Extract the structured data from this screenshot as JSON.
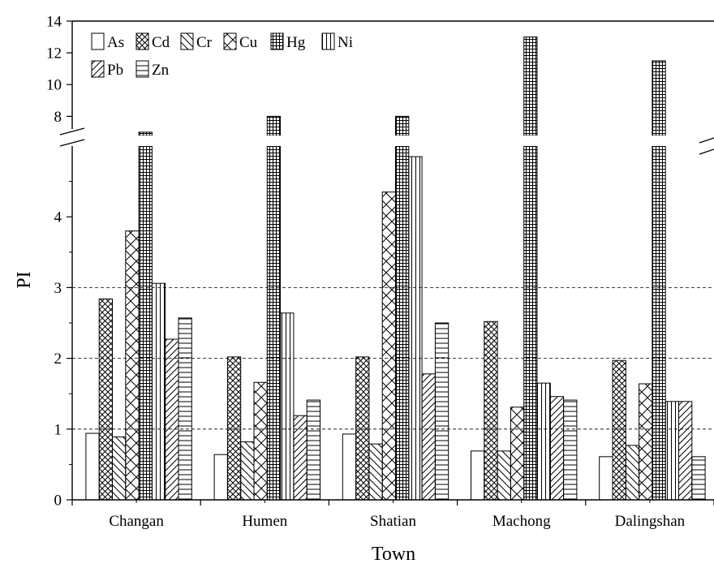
{
  "chart_data": {
    "type": "bar",
    "xlabel": "Town",
    "ylabel": "PI",
    "categories": [
      "Changan",
      "Humen",
      "Shatian",
      "Machong",
      "Dalingshan"
    ],
    "series": [
      {
        "name": "As",
        "values": [
          0.94,
          0.64,
          0.93,
          0.69,
          0.61
        ],
        "pattern": "blank"
      },
      {
        "name": "Cd",
        "values": [
          2.84,
          2.02,
          2.02,
          2.52,
          1.97
        ],
        "pattern": "crosshatch-dense"
      },
      {
        "name": "Cr",
        "values": [
          0.89,
          0.82,
          0.79,
          0.69,
          0.77
        ],
        "pattern": "backslash"
      },
      {
        "name": "Cu",
        "values": [
          3.8,
          1.66,
          4.35,
          1.31,
          1.64
        ],
        "pattern": "crosshatch-sparse"
      },
      {
        "name": "Hg",
        "values": [
          7.0,
          8.0,
          8.0,
          13.0,
          11.5
        ],
        "pattern": "grid"
      },
      {
        "name": "Ni",
        "values": [
          3.06,
          2.64,
          4.85,
          1.65,
          1.39
        ],
        "pattern": "vertical"
      },
      {
        "name": "Pb",
        "values": [
          2.27,
          1.19,
          1.78,
          1.46,
          1.39
        ],
        "pattern": "slash"
      },
      {
        "name": "Zn",
        "values": [
          2.57,
          1.41,
          2.5,
          1.41,
          0.61
        ],
        "pattern": "horizontal"
      }
    ],
    "y_axis": {
      "broken": true,
      "lower_range": [
        0,
        5
      ],
      "upper_range": [
        7.2,
        14
      ],
      "lower_ticks": [
        "0",
        "1",
        "2",
        "3",
        "4"
      ],
      "upper_ticks": [
        "8",
        "10",
        "12",
        "14"
      ]
    },
    "reference_lines": [
      1,
      2,
      3
    ],
    "legend_position": "top-left"
  }
}
